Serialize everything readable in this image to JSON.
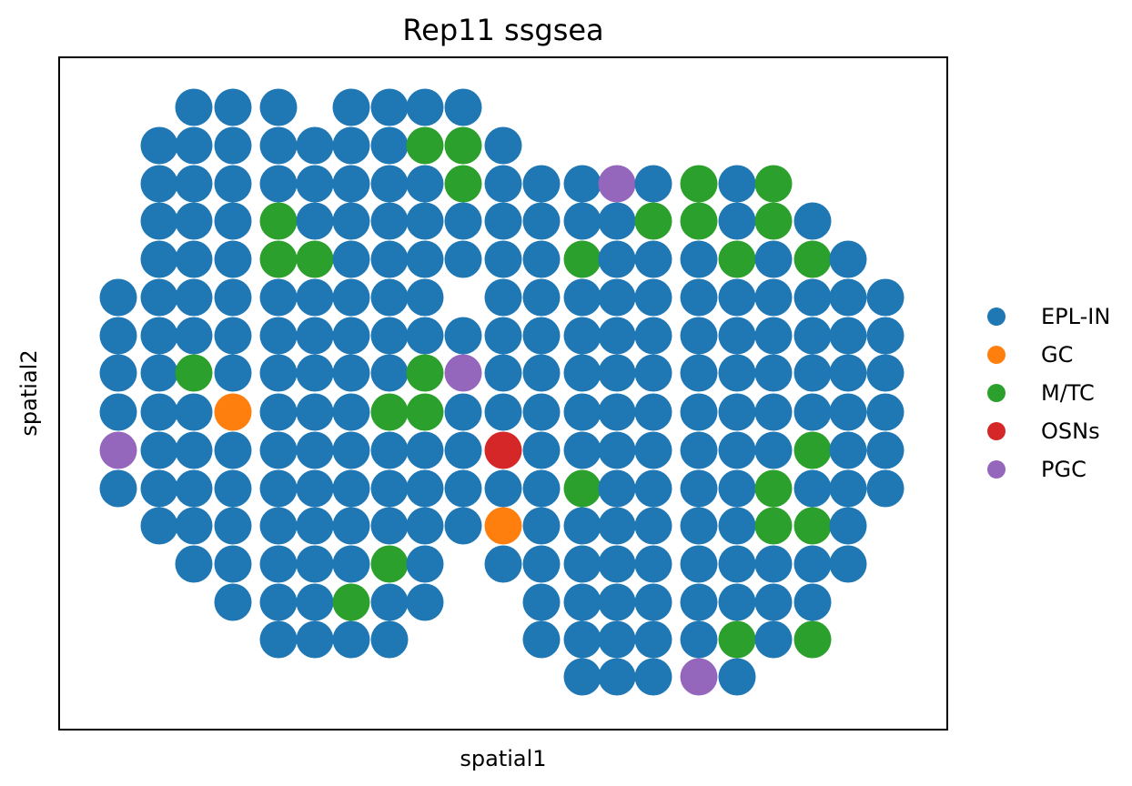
{
  "chart_data": {
    "type": "scatter",
    "title": "Rep11 ssgsea",
    "xlabel": "spatial1",
    "ylabel": "spatial2",
    "xticks": [],
    "yticks": [],
    "grid": false,
    "legend_position": "right, outside plot",
    "categories": [
      {
        "name": "EPL-IN",
        "color": "#1f77b4"
      },
      {
        "name": "GC",
        "color": "#ff7f0e"
      },
      {
        "name": "M/TC",
        "color": "#2ca02c"
      },
      {
        "name": "OSNs",
        "color": "#d62728"
      },
      {
        "name": "PGC",
        "color": "#9467bd"
      }
    ],
    "grid_x": [
      130,
      175,
      213,
      256,
      306,
      346,
      386,
      428,
      467,
      509,
      553,
      595,
      640,
      678,
      718,
      768,
      810,
      850,
      893,
      932,
      973
    ],
    "rows": [
      {
        "y": 118,
        "cells": [
          [
            2,
            "E"
          ],
          [
            3,
            "E"
          ],
          [
            4,
            "E"
          ],
          [
            6,
            "E"
          ],
          [
            7,
            "E"
          ],
          [
            8,
            "E"
          ],
          [
            9,
            "E"
          ]
        ]
      },
      {
        "y": 160,
        "cells": [
          [
            1,
            "E"
          ],
          [
            2,
            "E"
          ],
          [
            3,
            "E"
          ],
          [
            4,
            "E"
          ],
          [
            5,
            "E"
          ],
          [
            6,
            "E"
          ],
          [
            7,
            "E"
          ],
          [
            8,
            "M"
          ],
          [
            9,
            "M"
          ],
          [
            10,
            "E"
          ]
        ]
      },
      {
        "y": 202,
        "cells": [
          [
            1,
            "E"
          ],
          [
            2,
            "E"
          ],
          [
            3,
            "E"
          ],
          [
            4,
            "E"
          ],
          [
            5,
            "E"
          ],
          [
            6,
            "E"
          ],
          [
            7,
            "E"
          ],
          [
            8,
            "E"
          ],
          [
            9,
            "M"
          ],
          [
            10,
            "E"
          ],
          [
            11,
            "E"
          ],
          [
            12,
            "E"
          ],
          [
            13,
            "P"
          ],
          [
            14,
            "E"
          ],
          [
            15,
            "M"
          ],
          [
            16,
            "E"
          ],
          [
            17,
            "M"
          ]
        ]
      },
      {
        "y": 243,
        "cells": [
          [
            1,
            "E"
          ],
          [
            2,
            "E"
          ],
          [
            3,
            "E"
          ],
          [
            4,
            "M"
          ],
          [
            5,
            "E"
          ],
          [
            6,
            "E"
          ],
          [
            7,
            "E"
          ],
          [
            8,
            "E"
          ],
          [
            9,
            "E"
          ],
          [
            10,
            "E"
          ],
          [
            11,
            "E"
          ],
          [
            12,
            "E"
          ],
          [
            13,
            "E"
          ],
          [
            14,
            "M"
          ],
          [
            15,
            "M"
          ],
          [
            16,
            "E"
          ],
          [
            17,
            "M"
          ],
          [
            18,
            "E"
          ]
        ]
      },
      {
        "y": 285,
        "cells": [
          [
            1,
            "E"
          ],
          [
            2,
            "E"
          ],
          [
            3,
            "E"
          ],
          [
            4,
            "M"
          ],
          [
            5,
            "M"
          ],
          [
            6,
            "E"
          ],
          [
            7,
            "E"
          ],
          [
            8,
            "E"
          ],
          [
            9,
            "E"
          ],
          [
            10,
            "E"
          ],
          [
            11,
            "E"
          ],
          [
            12,
            "M"
          ],
          [
            13,
            "E"
          ],
          [
            14,
            "E"
          ],
          [
            15,
            "E"
          ],
          [
            16,
            "M"
          ],
          [
            17,
            "E"
          ],
          [
            18,
            "M"
          ],
          [
            19,
            "E"
          ]
        ]
      },
      {
        "y": 327,
        "cells": [
          [
            0,
            "E"
          ],
          [
            1,
            "E"
          ],
          [
            2,
            "E"
          ],
          [
            3,
            "E"
          ],
          [
            4,
            "E"
          ],
          [
            5,
            "E"
          ],
          [
            6,
            "E"
          ],
          [
            7,
            "E"
          ],
          [
            8,
            "E"
          ],
          [
            10,
            "E"
          ],
          [
            11,
            "E"
          ],
          [
            12,
            "E"
          ],
          [
            13,
            "E"
          ],
          [
            14,
            "E"
          ],
          [
            15,
            "E"
          ],
          [
            16,
            "E"
          ],
          [
            17,
            "E"
          ],
          [
            18,
            "E"
          ],
          [
            19,
            "E"
          ],
          [
            20,
            "E"
          ]
        ]
      },
      {
        "y": 369,
        "cells": [
          [
            0,
            "E"
          ],
          [
            1,
            "E"
          ],
          [
            2,
            "E"
          ],
          [
            3,
            "E"
          ],
          [
            4,
            "E"
          ],
          [
            5,
            "E"
          ],
          [
            6,
            "E"
          ],
          [
            7,
            "E"
          ],
          [
            8,
            "E"
          ],
          [
            9,
            "E"
          ],
          [
            10,
            "E"
          ],
          [
            11,
            "E"
          ],
          [
            12,
            "E"
          ],
          [
            13,
            "E"
          ],
          [
            14,
            "E"
          ],
          [
            15,
            "E"
          ],
          [
            16,
            "E"
          ],
          [
            17,
            "E"
          ],
          [
            18,
            "E"
          ],
          [
            19,
            "E"
          ],
          [
            20,
            "E"
          ]
        ]
      },
      {
        "y": 410,
        "cells": [
          [
            0,
            "E"
          ],
          [
            1,
            "E"
          ],
          [
            2,
            "M"
          ],
          [
            3,
            "E"
          ],
          [
            4,
            "E"
          ],
          [
            5,
            "E"
          ],
          [
            6,
            "E"
          ],
          [
            7,
            "E"
          ],
          [
            8,
            "M"
          ],
          [
            9,
            "P"
          ],
          [
            10,
            "E"
          ],
          [
            11,
            "E"
          ],
          [
            12,
            "E"
          ],
          [
            13,
            "E"
          ],
          [
            14,
            "E"
          ],
          [
            15,
            "E"
          ],
          [
            16,
            "E"
          ],
          [
            17,
            "E"
          ],
          [
            18,
            "E"
          ],
          [
            19,
            "E"
          ],
          [
            20,
            "E"
          ]
        ]
      },
      {
        "y": 453,
        "cells": [
          [
            0,
            "E"
          ],
          [
            1,
            "E"
          ],
          [
            2,
            "E"
          ],
          [
            3,
            "G"
          ],
          [
            4,
            "E"
          ],
          [
            5,
            "E"
          ],
          [
            6,
            "E"
          ],
          [
            7,
            "M"
          ],
          [
            8,
            "M"
          ],
          [
            9,
            "E"
          ],
          [
            10,
            "E"
          ],
          [
            11,
            "E"
          ],
          [
            12,
            "E"
          ],
          [
            13,
            "E"
          ],
          [
            14,
            "E"
          ],
          [
            15,
            "E"
          ],
          [
            16,
            "E"
          ],
          [
            17,
            "E"
          ],
          [
            18,
            "E"
          ],
          [
            19,
            "E"
          ],
          [
            20,
            "E"
          ]
        ]
      },
      {
        "y": 495,
        "cells": [
          [
            0,
            "P"
          ],
          [
            1,
            "E"
          ],
          [
            2,
            "E"
          ],
          [
            3,
            "E"
          ],
          [
            4,
            "E"
          ],
          [
            5,
            "E"
          ],
          [
            6,
            "E"
          ],
          [
            7,
            "E"
          ],
          [
            8,
            "E"
          ],
          [
            9,
            "E"
          ],
          [
            10,
            "O"
          ],
          [
            11,
            "E"
          ],
          [
            12,
            "E"
          ],
          [
            13,
            "E"
          ],
          [
            14,
            "E"
          ],
          [
            15,
            "E"
          ],
          [
            16,
            "E"
          ],
          [
            17,
            "E"
          ],
          [
            18,
            "M"
          ],
          [
            19,
            "E"
          ],
          [
            20,
            "E"
          ]
        ]
      },
      {
        "y": 537,
        "cells": [
          [
            0,
            "E"
          ],
          [
            1,
            "E"
          ],
          [
            2,
            "E"
          ],
          [
            3,
            "E"
          ],
          [
            4,
            "E"
          ],
          [
            5,
            "E"
          ],
          [
            6,
            "E"
          ],
          [
            7,
            "E"
          ],
          [
            8,
            "E"
          ],
          [
            9,
            "E"
          ],
          [
            10,
            "E"
          ],
          [
            11,
            "E"
          ],
          [
            12,
            "M"
          ],
          [
            13,
            "E"
          ],
          [
            14,
            "E"
          ],
          [
            15,
            "E"
          ],
          [
            16,
            "E"
          ],
          [
            17,
            "M"
          ],
          [
            18,
            "E"
          ],
          [
            19,
            "E"
          ],
          [
            20,
            "E"
          ]
        ]
      },
      {
        "y": 578,
        "cells": [
          [
            1,
            "E"
          ],
          [
            2,
            "E"
          ],
          [
            3,
            "E"
          ],
          [
            4,
            "E"
          ],
          [
            5,
            "E"
          ],
          [
            6,
            "E"
          ],
          [
            7,
            "E"
          ],
          [
            8,
            "E"
          ],
          [
            9,
            "E"
          ],
          [
            10,
            "G"
          ],
          [
            11,
            "E"
          ],
          [
            12,
            "E"
          ],
          [
            13,
            "E"
          ],
          [
            14,
            "E"
          ],
          [
            15,
            "E"
          ],
          [
            16,
            "E"
          ],
          [
            17,
            "M"
          ],
          [
            18,
            "M"
          ],
          [
            19,
            "E"
          ]
        ]
      },
      {
        "y": 620,
        "cells": [
          [
            2,
            "E"
          ],
          [
            3,
            "E"
          ],
          [
            4,
            "E"
          ],
          [
            5,
            "E"
          ],
          [
            6,
            "E"
          ],
          [
            7,
            "M"
          ],
          [
            8,
            "E"
          ],
          [
            10,
            "E"
          ],
          [
            11,
            "E"
          ],
          [
            12,
            "E"
          ],
          [
            13,
            "E"
          ],
          [
            14,
            "E"
          ],
          [
            15,
            "E"
          ],
          [
            16,
            "E"
          ],
          [
            17,
            "E"
          ],
          [
            18,
            "E"
          ],
          [
            19,
            "E"
          ]
        ]
      },
      {
        "y": 662,
        "cells": [
          [
            3,
            "E"
          ],
          [
            4,
            "E"
          ],
          [
            5,
            "E"
          ],
          [
            6,
            "M"
          ],
          [
            7,
            "E"
          ],
          [
            8,
            "E"
          ],
          [
            11,
            "E"
          ],
          [
            12,
            "E"
          ],
          [
            13,
            "E"
          ],
          [
            14,
            "E"
          ],
          [
            15,
            "E"
          ],
          [
            16,
            "E"
          ],
          [
            17,
            "E"
          ],
          [
            18,
            "E"
          ]
        ]
      },
      {
        "y": 703,
        "cells": [
          [
            4,
            "E"
          ],
          [
            5,
            "E"
          ],
          [
            6,
            "E"
          ],
          [
            7,
            "E"
          ],
          [
            11,
            "E"
          ],
          [
            12,
            "E"
          ],
          [
            13,
            "E"
          ],
          [
            14,
            "E"
          ],
          [
            15,
            "E"
          ],
          [
            16,
            "M"
          ],
          [
            17,
            "E"
          ],
          [
            18,
            "M"
          ]
        ]
      },
      {
        "y": 744,
        "cells": [
          [
            12,
            "E"
          ],
          [
            13,
            "E"
          ],
          [
            14,
            "E"
          ],
          [
            15,
            "P"
          ],
          [
            16,
            "E"
          ]
        ]
      }
    ],
    "code_map": {
      "E": "EPL-IN",
      "G": "GC",
      "M": "M/TC",
      "O": "OSNs",
      "P": "PGC"
    }
  }
}
